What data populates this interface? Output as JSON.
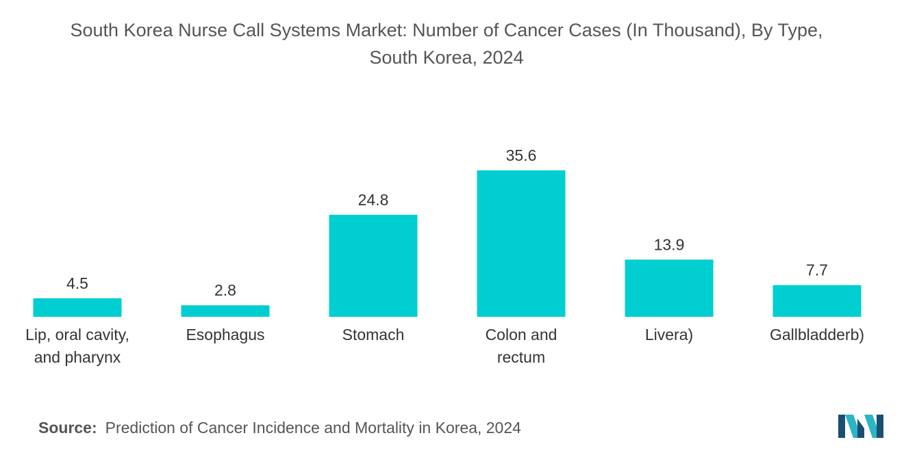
{
  "chart_data": {
    "type": "bar",
    "title_lines": [
      "South Korea Nurse Call Systems Market: Number of Cancer Cases (In Thousand), By Type,",
      "South Korea, 2024"
    ],
    "categories": [
      [
        "Lip, oral cavity,",
        "and pharynx"
      ],
      [
        "Esophagus"
      ],
      [
        "Stomach"
      ],
      [
        "Colon and",
        "rectum"
      ],
      [
        "Livera)"
      ],
      [
        "Gallbladderb)"
      ]
    ],
    "values": [
      4.5,
      2.8,
      24.8,
      35.6,
      13.9,
      7.7
    ],
    "value_labels": [
      "4.5",
      "2.8",
      "24.8",
      "35.6",
      "13.9",
      "7.7"
    ],
    "bar_color": "#00CED1",
    "xlabel": "",
    "ylabel": "",
    "ylim": [
      0,
      35.6
    ],
    "grid": false,
    "legend": "none"
  },
  "source": {
    "label": "Source:",
    "text": "Prediction of Cancer Incidence and Mortality in Korea, 2024"
  },
  "logo": {
    "icon": "mordor-intelligence-logo",
    "colors": [
      "#1B4F72",
      "#2BB5C5"
    ]
  }
}
